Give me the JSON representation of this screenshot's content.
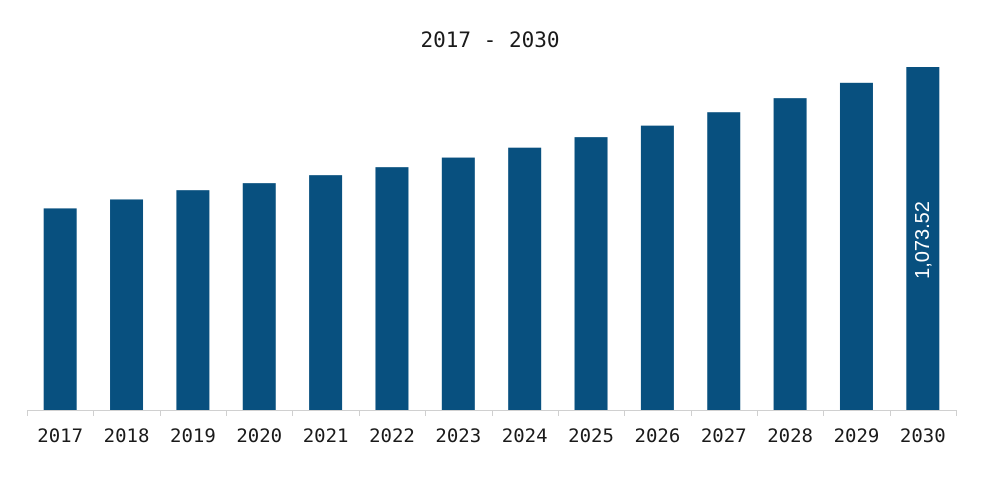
{
  "chart_data": {
    "type": "bar",
    "title": "2017 - 2030",
    "xlabel": "",
    "ylabel": "",
    "categories": [
      "2017",
      "2018",
      "2019",
      "2020",
      "2021",
      "2022",
      "2023",
      "2024",
      "2025",
      "2026",
      "2027",
      "2028",
      "2029",
      "2030"
    ],
    "values": [
      631,
      659,
      688,
      710,
      735,
      760,
      790,
      821,
      854,
      890,
      932,
      976,
      1024,
      1073.52
    ],
    "ylim": [
      0,
      1073.52
    ],
    "grid": false,
    "legend": "none",
    "data_labels": [
      {
        "category": "2030",
        "text": "1,073.52"
      }
    ],
    "colors": {
      "bar": "#08507f",
      "axis": "#d0d0d0",
      "text": "#1a1a1a",
      "data_label": "#ffffff"
    }
  }
}
